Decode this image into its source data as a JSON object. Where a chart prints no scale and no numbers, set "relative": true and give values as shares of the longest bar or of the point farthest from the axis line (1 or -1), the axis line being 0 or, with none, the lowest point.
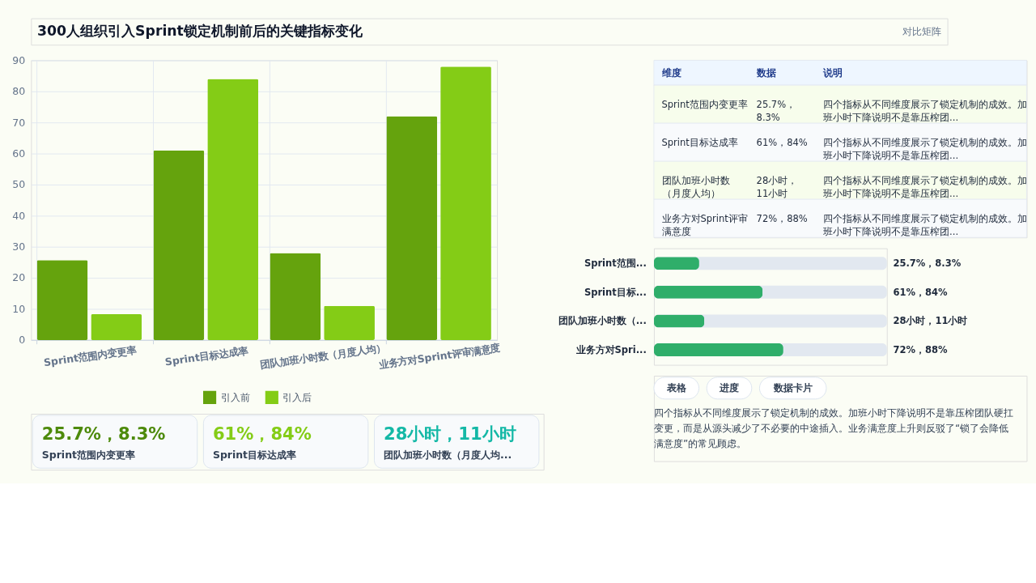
{
  "chart_data": [
    {
      "type": "other",
      "title": "300人组织引入Sprint锁定机制前后的关键指标变化",
      "subtitle": "对比矩阵"
    },
    {
      "type": "bar",
      "categories": [
        "Sprint范围内变更率",
        "Sprint目标达成率",
        "团队加班小时数（月度人均）",
        "业务方对Sprint评审满意度"
      ],
      "series": [
        {
          "name": "引入前",
          "color": "#65a30d",
          "values": [
            25.7,
            61,
            28,
            72
          ]
        },
        {
          "name": "引入后",
          "color": "#84cc16",
          "values": [
            8.3,
            84,
            11,
            88
          ]
        }
      ],
      "ylim": [
        0,
        90
      ],
      "yticks": [
        0,
        10,
        20,
        30,
        40,
        50,
        60,
        70,
        80,
        90
      ],
      "grid": true,
      "legend": "bottom"
    },
    {
      "type": "other",
      "categories": [
        "维度",
        "数据",
        "说明"
      ],
      "annotations": [
        "Sprint范围内变更率",
        "25.7%，8.3%",
        "四个指标从不同维度展示了锁定机制的成效。加班小时下降说明不是靠压榨团...",
        "Sprint目标达成率",
        "61%，84%",
        "四个指标从不同维度展示了锁定机制的成效。加班小时下降说明不是靠压榨团...",
        "团队加班小时数（月度人均）",
        "28小时，11小时",
        "四个指标从不同维度展示了锁定机制的成效。加班小时下降说明不是靠压榨团...",
        "业务方对Sprint评审满意度",
        "72%，88%",
        "四个指标从不同维度展示了锁定机制的成效。加班小时下降说明不是靠压榨团..."
      ]
    },
    {
      "type": "bar",
      "orientation": "horizontal",
      "relative": true,
      "categories": [
        "Sprint范围...",
        "Sprint目标...",
        "团队加班小时数（...",
        "业务方对Spri..."
      ],
      "values": [
        0.35,
        0.84,
        0.39,
        1
      ],
      "annotations": [
        "25.7%，8.3%",
        "61%，84%",
        "28小时，11小时",
        "72%，88%"
      ],
      "color": "#2fae6a"
    },
    {
      "type": "other",
      "annotations": [
        "25.7%，8.3%",
        "Sprint范围内变更率",
        "61%，84%",
        "Sprint目标达成率",
        "28小时，11小时",
        "团队加班小时数（月度人均..."
      ],
      "colors": [
        "#4d8a0b",
        "#84cc16",
        "#14b8a6"
      ]
    },
    {
      "type": "other",
      "categories": [
        "表格",
        "进度",
        "数据卡片"
      ],
      "annotations": [
        "四个指标从不同维度展示了锁定机制的成效。加班小时下降说明不是靠压榨团队硬扛变更，而是从源头减少了不必要的中途插入。业务满意度上升则反驳了“锁了会降低满意度”的常见顾虑。"
      ]
    }
  ]
}
